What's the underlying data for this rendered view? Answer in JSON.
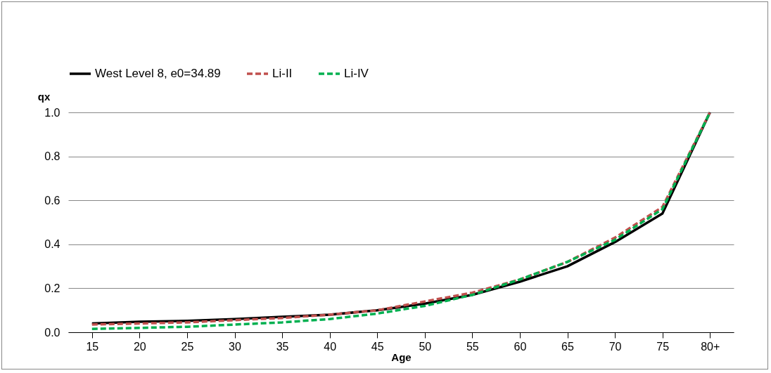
{
  "chart_data": {
    "type": "line",
    "xlabel": "Age",
    "ylabel": "qx",
    "categories": [
      "15",
      "20",
      "25",
      "30",
      "35",
      "40",
      "45",
      "50",
      "55",
      "60",
      "65",
      "70",
      "75",
      "80+"
    ],
    "series": [
      {
        "name": "West Level 8, e0=34.89",
        "color": "#000000",
        "line_style": "solid",
        "values": [
          0.04,
          0.048,
          0.052,
          0.06,
          0.07,
          0.08,
          0.1,
          0.13,
          0.17,
          0.23,
          0.3,
          0.41,
          0.54,
          1.0
        ]
      },
      {
        "name": "Li-II",
        "color": "#c0504d",
        "line_style": "dashed",
        "values": [
          0.035,
          0.04,
          0.045,
          0.055,
          0.065,
          0.08,
          0.1,
          0.14,
          0.18,
          0.24,
          0.32,
          0.43,
          0.57,
          1.0
        ]
      },
      {
        "name": "Li-IV",
        "color": "#00b050",
        "line_style": "dashed",
        "values": [
          0.015,
          0.02,
          0.025,
          0.035,
          0.045,
          0.06,
          0.085,
          0.12,
          0.17,
          0.24,
          0.32,
          0.42,
          0.56,
          1.0
        ]
      }
    ],
    "ylim": [
      0,
      1
    ],
    "yticks": [
      {
        "value": 0,
        "label": "0.0"
      },
      {
        "value": 0.2,
        "label": "0.2"
      },
      {
        "value": 0.4,
        "label": "0.4"
      },
      {
        "value": 0.6,
        "label": "0.6"
      },
      {
        "value": 0.8,
        "label": "0.8"
      },
      {
        "value": 1,
        "label": "1.0"
      }
    ],
    "grid": "y",
    "legend": "top",
    "marker": "none"
  }
}
